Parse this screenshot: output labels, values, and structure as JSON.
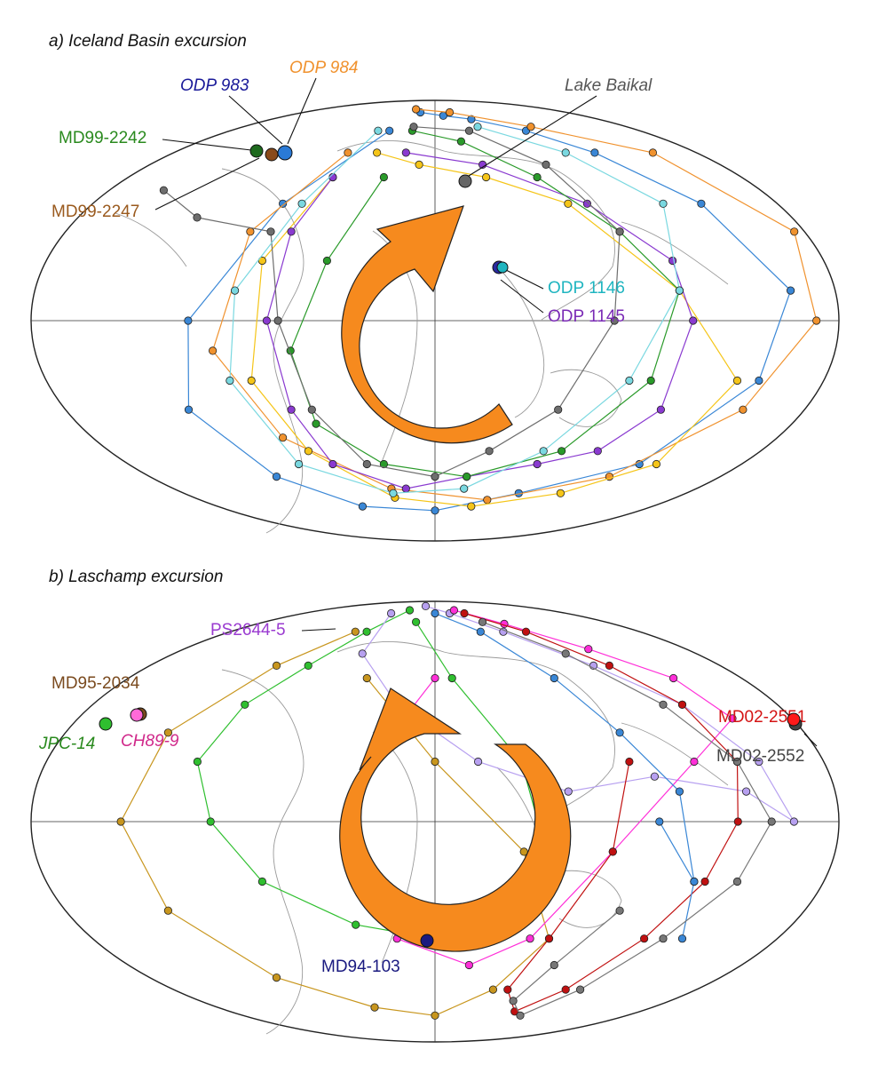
{
  "panels": [
    {
      "title": "a) Iceland Basin excursion",
      "sites": [
        {
          "name": "ODP 983",
          "color": "#1a1a99",
          "italic": true,
          "lon": -23,
          "lat": 61
        },
        {
          "name": "ODP 984",
          "color": "#f0922e",
          "italic": true,
          "lon": -25,
          "lat": 61
        },
        {
          "name": "MD99-2242",
          "color": "#2a8a1e",
          "italic": false,
          "lon": -32,
          "lat": 62
        },
        {
          "name": "MD99-2247",
          "color": "#9a5a1e",
          "italic": false,
          "lon": -28,
          "lat": 62
        },
        {
          "name": "Lake Baikal",
          "color": "#555555",
          "italic": true,
          "lon": 108,
          "lat": 53
        },
        {
          "name": "ODP 1146",
          "color": "#1fb5c0",
          "italic": false,
          "lon": 117,
          "lat": 19
        },
        {
          "name": "ODP 1145",
          "color": "#7a2ab5",
          "italic": false,
          "lon": 117,
          "lat": 19
        }
      ],
      "rotation": "counterclockwise"
    },
    {
      "title": "b) Laschamp excursion",
      "sites": [
        {
          "name": "PS2644-5",
          "color": "#9a3ad0",
          "italic": false,
          "lon": -22,
          "lat": 67
        },
        {
          "name": "MD95-2034",
          "color": "#7a4a1e",
          "italic": false,
          "lon": -58,
          "lat": 34
        },
        {
          "name": "JPC-14",
          "color": "#2a8a1e",
          "italic": true,
          "lon": -66,
          "lat": 33
        },
        {
          "name": "CH89-9",
          "color": "#d0288a",
          "italic": true,
          "lon": -60,
          "lat": 34
        },
        {
          "name": "MD02-2551",
          "color": "#d41414",
          "italic": false,
          "lon": -120,
          "lat": 34
        },
        {
          "name": "MD02-2552",
          "color": "#444444",
          "italic": false,
          "lon": -120,
          "lat": 34
        },
        {
          "name": "MD94-103",
          "color": "#1a1a80",
          "italic": false,
          "lon": 148,
          "lat": -45
        }
      ],
      "rotation": "clockwise"
    }
  ],
  "chart_data": {
    "type": "scatter",
    "projection": "mollweide",
    "center_longitude": 0,
    "note_series": "VGP paths",
    "series_a": [
      {
        "color": "#3a87d6",
        "points": [
          [
            -20,
            80
          ],
          [
            10,
            78
          ],
          [
            40,
            76
          ],
          [
            80,
            70
          ],
          [
            110,
            60
          ],
          [
            140,
            40
          ],
          [
            160,
            10
          ],
          [
            150,
            -20
          ],
          [
            120,
            -50
          ],
          [
            60,
            -62
          ],
          [
            0,
            -70
          ],
          [
            -60,
            -68
          ],
          [
            -100,
            -55
          ],
          [
            -120,
            -30
          ],
          [
            -110,
            0
          ],
          [
            -80,
            40
          ],
          [
            -40,
            70
          ]
        ]
      },
      {
        "color": "#f0922e",
        "points": [
          [
            -30,
            82
          ],
          [
            20,
            80
          ],
          [
            90,
            72
          ],
          [
            150,
            60
          ],
          [
            175,
            30
          ],
          [
            170,
            0
          ],
          [
            150,
            -30
          ],
          [
            110,
            -55
          ],
          [
            40,
            -65
          ],
          [
            -30,
            -60
          ],
          [
            -80,
            -40
          ],
          [
            -100,
            -10
          ],
          [
            -90,
            30
          ],
          [
            -60,
            60
          ]
        ]
      },
      {
        "color": "#f5c518",
        "points": [
          [
            -40,
            60
          ],
          [
            -10,
            55
          ],
          [
            30,
            50
          ],
          [
            70,
            40
          ],
          [
            110,
            10
          ],
          [
            140,
            -20
          ],
          [
            130,
            -50
          ],
          [
            90,
            -62
          ],
          [
            30,
            -68
          ],
          [
            -30,
            -64
          ],
          [
            -70,
            -45
          ],
          [
            -85,
            -20
          ],
          [
            -80,
            20
          ],
          [
            -60,
            50
          ]
        ]
      },
      {
        "color": "#8a3ad0",
        "points": [
          [
            -60,
            50
          ],
          [
            -70,
            30
          ],
          [
            -75,
            0
          ],
          [
            -70,
            -30
          ],
          [
            -60,
            -50
          ],
          [
            -20,
            -60
          ],
          [
            20,
            -55
          ],
          [
            60,
            -50
          ],
          [
            90,
            -45
          ],
          [
            110,
            -30
          ],
          [
            115,
            0
          ],
          [
            110,
            20
          ],
          [
            80,
            40
          ],
          [
            30,
            55
          ],
          [
            -20,
            60
          ]
        ]
      },
      {
        "color": "#2a9a2a",
        "points": [
          [
            -20,
            70
          ],
          [
            20,
            65
          ],
          [
            60,
            50
          ],
          [
            90,
            30
          ],
          [
            110,
            10
          ],
          [
            100,
            -20
          ],
          [
            70,
            -45
          ],
          [
            20,
            -55
          ],
          [
            -30,
            -50
          ],
          [
            -60,
            -35
          ],
          [
            -65,
            -10
          ],
          [
            -50,
            20
          ],
          [
            -30,
            50
          ]
        ]
      },
      {
        "color": "#6e6e6e",
        "points": [
          [
            -150,
            45
          ],
          [
            -120,
            35
          ],
          [
            -80,
            30
          ],
          [
            -70,
            0
          ],
          [
            -60,
            -30
          ],
          [
            -40,
            -50
          ],
          [
            0,
            -55
          ],
          [
            30,
            -45
          ],
          [
            60,
            -30
          ],
          [
            80,
            0
          ],
          [
            90,
            30
          ],
          [
            70,
            55
          ],
          [
            30,
            70
          ],
          [
            -20,
            72
          ]
        ]
      },
      {
        "color": "#7ad8e0",
        "points": [
          [
            -50,
            70
          ],
          [
            -70,
            40
          ],
          [
            -90,
            10
          ],
          [
            -95,
            -20
          ],
          [
            -80,
            -50
          ],
          [
            -30,
            -62
          ],
          [
            20,
            -60
          ],
          [
            60,
            -45
          ],
          [
            90,
            -20
          ],
          [
            110,
            10
          ],
          [
            120,
            40
          ],
          [
            90,
            60
          ],
          [
            40,
            72
          ]
        ]
      }
    ],
    "series_b": [
      {
        "color": "#2fbf2f",
        "points": [
          [
            -40,
            82
          ],
          [
            -60,
            70
          ],
          [
            -80,
            55
          ],
          [
            -100,
            40
          ],
          [
            -110,
            20
          ],
          [
            -100,
            0
          ],
          [
            -80,
            -20
          ],
          [
            -40,
            -35
          ],
          [
            0,
            -40
          ],
          [
            30,
            -30
          ],
          [
            50,
            -10
          ],
          [
            40,
            20
          ],
          [
            10,
            50
          ],
          [
            -20,
            75
          ]
        ]
      },
      {
        "color": "#c8961e",
        "points": [
          [
            -70,
            70
          ],
          [
            -100,
            55
          ],
          [
            -130,
            30
          ],
          [
            -140,
            0
          ],
          [
            -130,
            -30
          ],
          [
            -100,
            -55
          ],
          [
            -50,
            -68
          ],
          [
            0,
            -72
          ],
          [
            40,
            -60
          ],
          [
            60,
            -40
          ],
          [
            40,
            -10
          ],
          [
            0,
            20
          ],
          [
            -40,
            50
          ]
        ]
      },
      {
        "color": "#b7a0f0",
        "points": [
          [
            -20,
            85
          ],
          [
            20,
            80
          ],
          [
            60,
            70
          ],
          [
            100,
            55
          ],
          [
            130,
            40
          ],
          [
            150,
            20
          ],
          [
            160,
            0
          ],
          [
            140,
            10
          ],
          [
            100,
            15
          ],
          [
            60,
            10
          ],
          [
            20,
            20
          ],
          [
            -20,
            40
          ],
          [
            -50,
            60
          ],
          [
            -60,
            80
          ]
        ]
      },
      {
        "color": "#ff2fd8",
        "points": [
          [
            30,
            82
          ],
          [
            70,
            74
          ],
          [
            110,
            62
          ],
          [
            140,
            50
          ],
          [
            150,
            35
          ],
          [
            120,
            20
          ],
          [
            80,
            -10
          ],
          [
            50,
            -40
          ],
          [
            20,
            -50
          ],
          [
            -20,
            -40
          ],
          [
            -40,
            -10
          ],
          [
            -30,
            20
          ],
          [
            0,
            50
          ]
        ]
      },
      {
        "color": "#c01010",
        "points": [
          [
            40,
            80
          ],
          [
            80,
            70
          ],
          [
            110,
            55
          ],
          [
            130,
            40
          ],
          [
            140,
            20
          ],
          [
            135,
            0
          ],
          [
            125,
            -20
          ],
          [
            110,
            -40
          ],
          [
            90,
            -60
          ],
          [
            70,
            -70
          ],
          [
            50,
            -60
          ],
          [
            60,
            -40
          ],
          [
            80,
            -10
          ],
          [
            90,
            20
          ]
        ]
      },
      {
        "color": "#3a87d6",
        "points": [
          [
            0,
            80
          ],
          [
            40,
            70
          ],
          [
            70,
            50
          ],
          [
            90,
            30
          ],
          [
            110,
            10
          ],
          [
            120,
            -20
          ],
          [
            130,
            -40
          ],
          [
            120,
            -20
          ],
          [
            100,
            0
          ]
        ]
      },
      {
        "color": "#777777",
        "points": [
          [
            50,
            75
          ],
          [
            90,
            60
          ],
          [
            120,
            40
          ],
          [
            140,
            20
          ],
          [
            150,
            0
          ],
          [
            140,
            -20
          ],
          [
            120,
            -40
          ],
          [
            100,
            -60
          ],
          [
            80,
            -72
          ],
          [
            60,
            -65
          ],
          [
            70,
            -50
          ],
          [
            90,
            -30
          ]
        ]
      }
    ]
  }
}
